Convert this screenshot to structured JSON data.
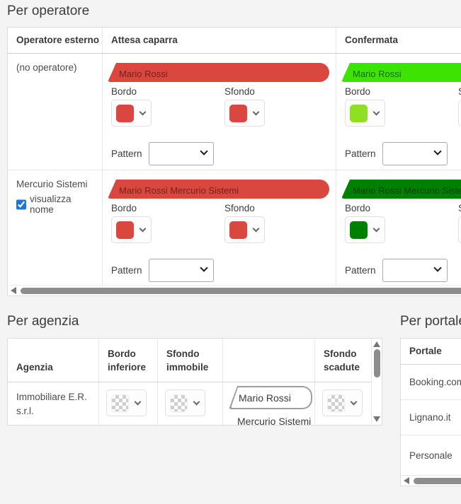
{
  "colors": {
    "page_bg": "#f4f4f4",
    "checkbox_accent": "#1a73e8"
  },
  "operators": {
    "title": "Per operatore",
    "headers": {
      "operator": "Operatore esterno",
      "awaiting": "Attesa caparra",
      "confirmed": "Confermata"
    },
    "labels": {
      "border": "Bordo",
      "background": "Sfondo",
      "pattern": "Pattern"
    },
    "rows": [
      {
        "name": "(no operatore)",
        "awaiting": {
          "pill": "Mario Rossi",
          "pill_bg": "#d9473f",
          "pill_fg": "#71231d",
          "border": "#d9473f",
          "background": "#d9473f"
        },
        "confirmed": {
          "pill": "Mario Rossi",
          "pill_bg": "#3ce303",
          "pill_fg": "#1d6702",
          "border": "#8fdf22",
          "background": "#3ce303"
        }
      },
      {
        "name": "Mercurio Sistemi",
        "checkbox_label": "visualizza nome",
        "checkbox_checked": true,
        "awaiting": {
          "pill": "Mario Rossi Mercurio Sistemi",
          "pill_bg": "#d9473f",
          "pill_fg": "#71231d",
          "border": "#d9473f",
          "background": "#d9473f"
        },
        "confirmed": {
          "pill": "Mario Rossi Mercurio Sistemi",
          "pill_bg": "#008000",
          "pill_fg": "#033c03",
          "border": "#008000",
          "background": "#008000"
        }
      }
    ]
  },
  "agencies": {
    "title": "Per agenzia",
    "headers": [
      "Agenzia",
      "Bordo inferiore",
      "Sfondo immobile",
      "",
      "Sfondo scadute"
    ],
    "rows": [
      {
        "name": "Immobiliare E.R. s.r.l.",
        "preview_pill": "Mario Rossi",
        "preview_sub": "Mercurio Sistemi"
      }
    ]
  },
  "portals": {
    "title": "Per portale",
    "header": "Portale",
    "rows": [
      "Booking.com",
      "Lignano.it",
      "Personale"
    ]
  }
}
